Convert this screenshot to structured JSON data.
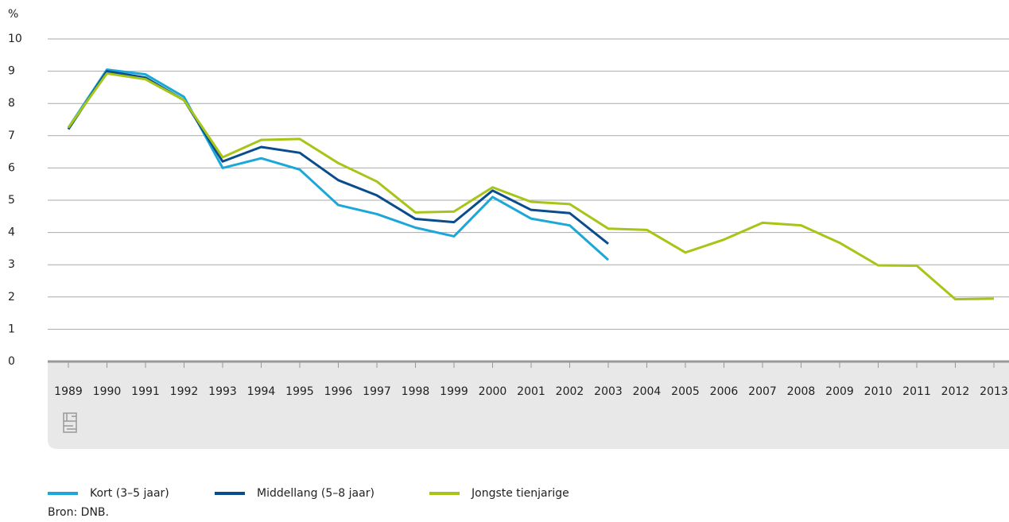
{
  "chart_data": {
    "type": "line",
    "y_unit": "%",
    "categories": [
      "1989",
      "1990",
      "1991",
      "1992",
      "1993",
      "1994",
      "1995",
      "1996",
      "1997",
      "1998",
      "1999",
      "2000",
      "2001",
      "2002",
      "2003",
      "2004",
      "2005",
      "2006",
      "2007",
      "2008",
      "2009",
      "2010",
      "2011",
      "2012",
      "2013"
    ],
    "series": [
      {
        "name": "Kort (3–5 jaar)",
        "color": "#1ba8d9",
        "values": [
          7.25,
          9.05,
          8.9,
          8.2,
          6.0,
          6.3,
          5.95,
          4.85,
          4.57,
          4.15,
          3.88,
          5.1,
          4.43,
          4.22,
          3.15,
          null,
          null,
          null,
          null,
          null,
          null,
          null,
          null,
          null,
          null
        ]
      },
      {
        "name": "Middellang (5–8 jaar)",
        "color": "#0a4d8c",
        "values": [
          7.2,
          9.0,
          8.8,
          8.1,
          6.2,
          6.65,
          6.47,
          5.62,
          5.15,
          4.42,
          4.32,
          5.3,
          4.7,
          4.6,
          3.65,
          null,
          null,
          null,
          null,
          null,
          null,
          null,
          null,
          null,
          null
        ]
      },
      {
        "name": "Jongste tienjarige",
        "color": "#a6c516",
        "values": [
          7.25,
          8.93,
          8.75,
          8.1,
          6.33,
          6.87,
          6.9,
          6.15,
          5.58,
          4.62,
          4.65,
          5.4,
          4.95,
          4.88,
          4.12,
          4.08,
          3.38,
          3.78,
          4.3,
          4.22,
          3.68,
          2.98,
          2.97,
          1.93,
          1.95
        ]
      }
    ],
    "ylim": [
      0,
      10
    ],
    "yticks": [
      0,
      1,
      2,
      3,
      4,
      5,
      6,
      7,
      8,
      9,
      10
    ],
    "grid": true,
    "source": "Bron: DNB."
  }
}
